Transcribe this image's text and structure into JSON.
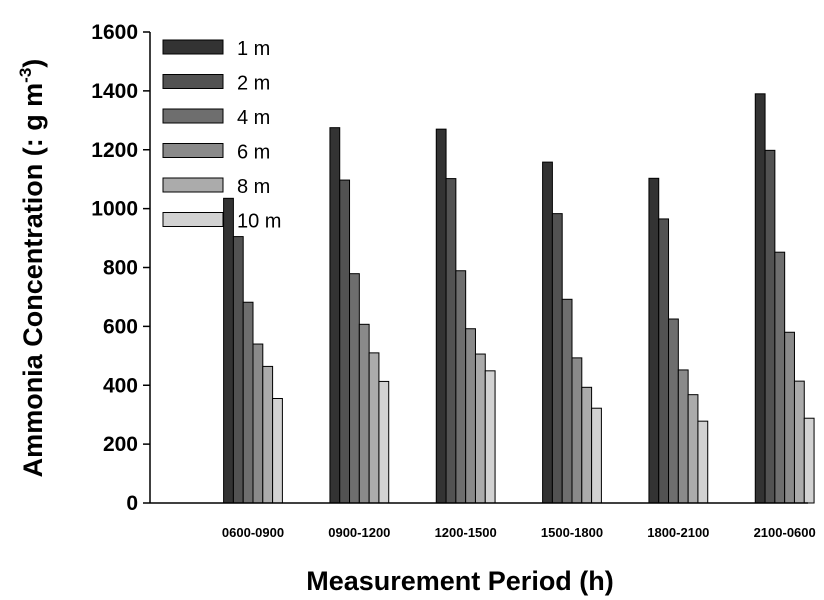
{
  "chart_data": {
    "type": "bar",
    "title": "",
    "xlabel": "Measurement Period (h)",
    "ylabel": {
      "main": "Ammonia Concentration (: g m",
      "superscript": "-3",
      "close": ")"
    },
    "ylim": [
      0,
      1600
    ],
    "yticks": [
      "0",
      "200",
      "400",
      "600",
      "800",
      "1000",
      "1200",
      "1400",
      "1600"
    ],
    "grid": false,
    "legend_position": "top-left",
    "categories": [
      "0600-0900",
      "0900-1200",
      "1200-1500",
      "1500-1800",
      "1800-2100",
      "2100-0600"
    ],
    "series": [
      {
        "name": "1 m",
        "color": "#333333",
        "values": [
          1035,
          1275,
          1270,
          1158,
          1103,
          1390
        ]
      },
      {
        "name": "2 m",
        "color": "#525252",
        "values": [
          905,
          1097,
          1102,
          983,
          965,
          1198
        ]
      },
      {
        "name": "4 m",
        "color": "#6e6e6e",
        "values": [
          682,
          779,
          789,
          692,
          625,
          852
        ]
      },
      {
        "name": "6 m",
        "color": "#8a8a8a",
        "values": [
          540,
          607,
          592,
          493,
          452,
          580
        ]
      },
      {
        "name": "8 m",
        "color": "#ababab",
        "values": [
          464,
          510,
          506,
          393,
          368,
          414
        ]
      },
      {
        "name": "10 m",
        "color": "#d2d2d2",
        "values": [
          355,
          413,
          449,
          322,
          278,
          288
        ]
      }
    ]
  }
}
